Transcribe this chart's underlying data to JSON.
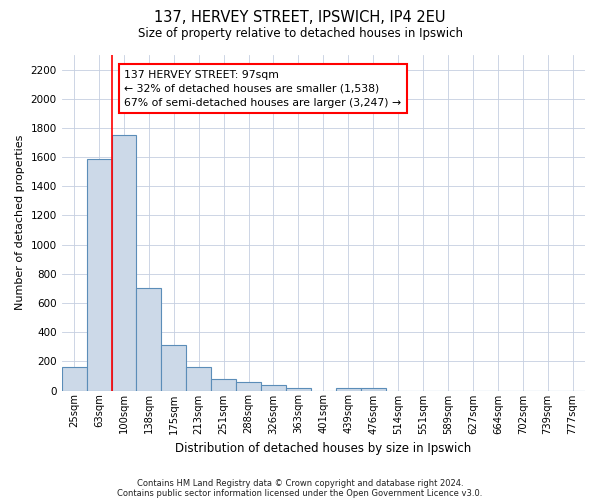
{
  "title1": "137, HERVEY STREET, IPSWICH, IP4 2EU",
  "title2": "Size of property relative to detached houses in Ipswich",
  "xlabel": "Distribution of detached houses by size in Ipswich",
  "ylabel": "Number of detached properties",
  "bar_labels": [
    "25sqm",
    "63sqm",
    "100sqm",
    "138sqm",
    "175sqm",
    "213sqm",
    "251sqm",
    "288sqm",
    "326sqm",
    "363sqm",
    "401sqm",
    "439sqm",
    "476sqm",
    "514sqm",
    "551sqm",
    "589sqm",
    "627sqm",
    "664sqm",
    "702sqm",
    "739sqm",
    "777sqm"
  ],
  "bar_values": [
    160,
    1590,
    1750,
    700,
    315,
    160,
    80,
    55,
    35,
    20,
    0,
    20,
    20,
    0,
    0,
    0,
    0,
    0,
    0,
    0,
    0
  ],
  "bar_color": "#ccd9e8",
  "bar_edge_color": "#5b8db8",
  "red_line_index": 2,
  "ylim": [
    0,
    2300
  ],
  "yticks": [
    0,
    200,
    400,
    600,
    800,
    1000,
    1200,
    1400,
    1600,
    1800,
    2000,
    2200
  ],
  "annotation_text": "137 HERVEY STREET: 97sqm\n← 32% of detached houses are smaller (1,538)\n67% of semi-detached houses are larger (3,247) →",
  "footnote1": "Contains HM Land Registry data © Crown copyright and database right 2024.",
  "footnote2": "Contains public sector information licensed under the Open Government Licence v3.0.",
  "background_color": "#ffffff",
  "grid_color": "#c5cfe0"
}
